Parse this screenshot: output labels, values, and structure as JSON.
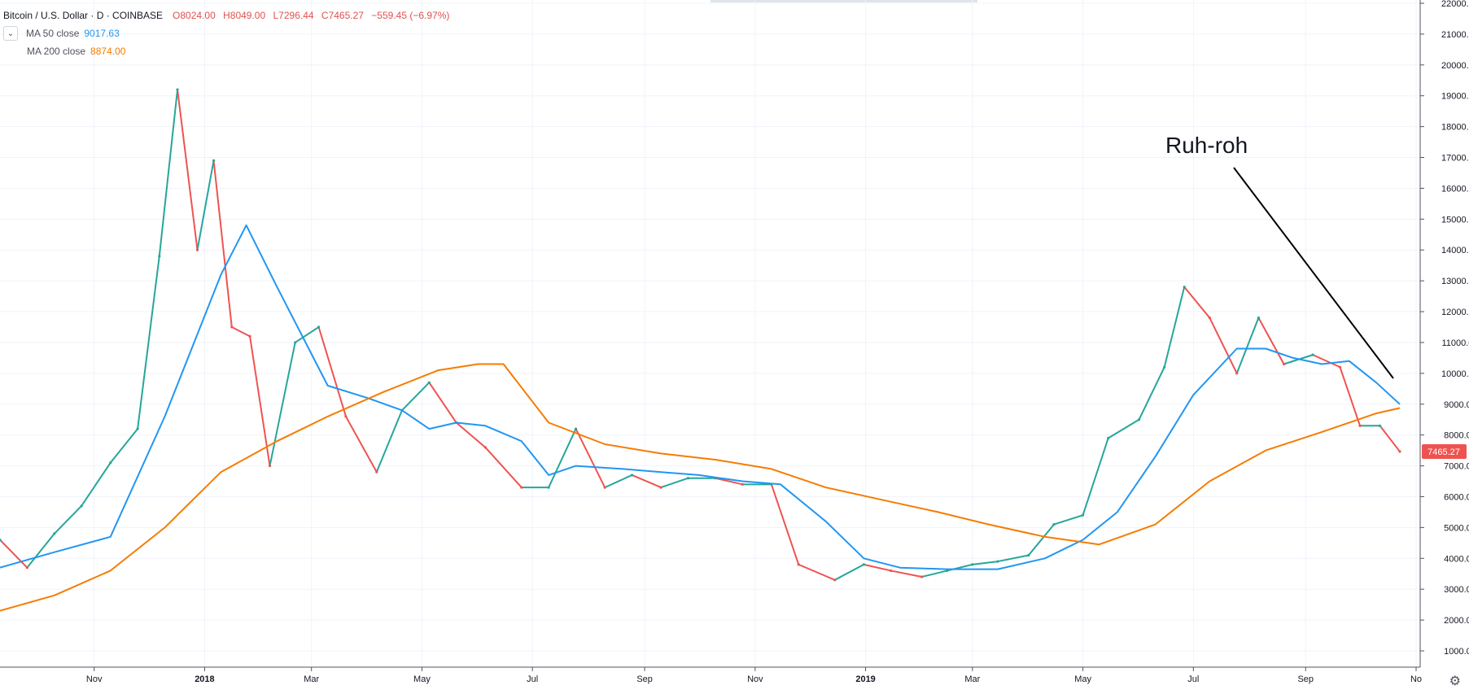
{
  "legend": {
    "symbol": "Bitcoin / U.S. Dollar · D · COINBASE",
    "open": "O8024.00",
    "high": "H8049.00",
    "low": "L7296.44",
    "close": "C7465.27",
    "change": "−559.45 (−6.97%)",
    "ma50_label": "MA  50 close",
    "ma50_value": "9017.63",
    "ma200_label": "MA  200 close",
    "ma200_value": "8874.00",
    "toggle_icon": "chevron-down-icon"
  },
  "colors": {
    "up": "#26a69a",
    "down": "#ef5350",
    "ma50": "#2196f3",
    "ma200": "#f57c00",
    "grid": "#f0f3fa",
    "last_price_bg": "#ef5350"
  },
  "annotation": {
    "text": "Ruh-roh"
  },
  "last_price_label": "7465.27",
  "chart_data": {
    "type": "line",
    "title": "Bitcoin / U.S. Dollar · D · COINBASE",
    "xlabel": "",
    "ylabel": "",
    "ylim": [
      0,
      22000
    ],
    "y_ticks": [
      1000,
      2000,
      3000,
      4000,
      5000,
      6000,
      7000,
      8000,
      9000,
      10000,
      11000,
      12000,
      13000,
      14000,
      15000,
      16000,
      17000,
      18000,
      19000,
      20000,
      21000,
      22000
    ],
    "x_tick_labels": [
      "Nov",
      "2018",
      "Mar",
      "May",
      "Jul",
      "Sep",
      "Nov",
      "2019",
      "Mar",
      "May",
      "Jul",
      "Sep",
      "No"
    ],
    "x_tick_dates": [
      "2017-11-01",
      "2018-01-01",
      "2018-03-01",
      "2018-05-01",
      "2018-07-01",
      "2018-09-01",
      "2018-11-01",
      "2019-01-01",
      "2019-03-01",
      "2019-05-01",
      "2019-07-01",
      "2019-09-01",
      "2019-11-01"
    ],
    "x_range": [
      "2017-09-10",
      "2019-11-01"
    ],
    "grid": true,
    "series": [
      {
        "name": "Close",
        "x": [
          "2017-09-10",
          "2017-09-25",
          "2017-10-10",
          "2017-10-25",
          "2017-11-10",
          "2017-11-25",
          "2017-12-07",
          "2017-12-17",
          "2017-12-28",
          "2018-01-06",
          "2018-01-16",
          "2018-01-26",
          "2018-02-06",
          "2018-02-20",
          "2018-03-05",
          "2018-03-20",
          "2018-04-06",
          "2018-04-20",
          "2018-05-05",
          "2018-05-20",
          "2018-06-05",
          "2018-06-25",
          "2018-07-10",
          "2018-07-25",
          "2018-08-10",
          "2018-08-25",
          "2018-09-10",
          "2018-09-25",
          "2018-10-10",
          "2018-10-25",
          "2018-11-10",
          "2018-11-25",
          "2018-12-15",
          "2018-12-31",
          "2019-01-15",
          "2019-02-01",
          "2019-02-15",
          "2019-03-01",
          "2019-03-15",
          "2019-04-01",
          "2019-04-15",
          "2019-05-01",
          "2019-05-15",
          "2019-06-01",
          "2019-06-15",
          "2019-06-26",
          "2019-07-10",
          "2019-07-25",
          "2019-08-06",
          "2019-08-20",
          "2019-09-05",
          "2019-09-20",
          "2019-10-01",
          "2019-10-12",
          "2019-10-23"
        ],
        "values": [
          4600,
          3700,
          4800,
          5700,
          7100,
          8200,
          13800,
          19200,
          14000,
          16900,
          11500,
          11200,
          7000,
          11000,
          11500,
          8600,
          6800,
          8800,
          9700,
          8400,
          7600,
          6300,
          6300,
          8200,
          6300,
          6700,
          6300,
          6600,
          6600,
          6400,
          6400,
          3800,
          3300,
          3800,
          3600,
          3400,
          3600,
          3800,
          3900,
          4100,
          5100,
          5400,
          7900,
          8500,
          10200,
          12800,
          11800,
          10000,
          11800,
          10300,
          10600,
          10200,
          8300,
          8300,
          7465
        ]
      },
      {
        "name": "MA 50 close",
        "x": [
          "2017-09-10",
          "2017-10-10",
          "2017-11-10",
          "2017-12-10",
          "2018-01-10",
          "2018-01-24",
          "2018-02-10",
          "2018-03-10",
          "2018-04-01",
          "2018-04-20",
          "2018-05-05",
          "2018-05-20",
          "2018-06-05",
          "2018-06-25",
          "2018-07-10",
          "2018-07-25",
          "2018-08-20",
          "2018-09-10",
          "2018-10-01",
          "2018-10-25",
          "2018-11-15",
          "2018-12-10",
          "2018-12-31",
          "2019-01-20",
          "2019-02-15",
          "2019-03-15",
          "2019-04-10",
          "2019-05-01",
          "2019-05-20",
          "2019-06-10",
          "2019-07-01",
          "2019-07-25",
          "2019-08-10",
          "2019-08-25",
          "2019-09-10",
          "2019-09-25",
          "2019-10-10",
          "2019-10-23"
        ],
        "values": [
          3700,
          4200,
          4700,
          8600,
          13200,
          14800,
          12800,
          9600,
          9200,
          8800,
          8200,
          8400,
          8300,
          7800,
          6700,
          7000,
          6900,
          6800,
          6700,
          6500,
          6400,
          5200,
          4000,
          3700,
          3650,
          3650,
          4000,
          4600,
          5500,
          7300,
          9300,
          10800,
          10800,
          10500,
          10300,
          10400,
          9700,
          9000
        ]
      },
      {
        "name": "MA 200 close",
        "x": [
          "2017-09-10",
          "2017-10-10",
          "2017-11-10",
          "2017-12-10",
          "2018-01-10",
          "2018-02-10",
          "2018-03-10",
          "2018-04-10",
          "2018-05-10",
          "2018-06-01",
          "2018-06-15",
          "2018-07-10",
          "2018-08-10",
          "2018-09-10",
          "2018-10-10",
          "2018-11-10",
          "2018-12-10",
          "2019-01-10",
          "2019-02-10",
          "2019-03-10",
          "2019-04-10",
          "2019-05-10",
          "2019-06-10",
          "2019-07-10",
          "2019-08-10",
          "2019-09-10",
          "2019-10-10",
          "2019-10-23"
        ],
        "values": [
          2300,
          2800,
          3600,
          5000,
          6800,
          7800,
          8600,
          9400,
          10100,
          10300,
          10300,
          8400,
          7700,
          7400,
          7200,
          6900,
          6300,
          5900,
          5500,
          5100,
          4700,
          4450,
          5100,
          6500,
          7500,
          8100,
          8700,
          8874
        ]
      }
    ]
  }
}
